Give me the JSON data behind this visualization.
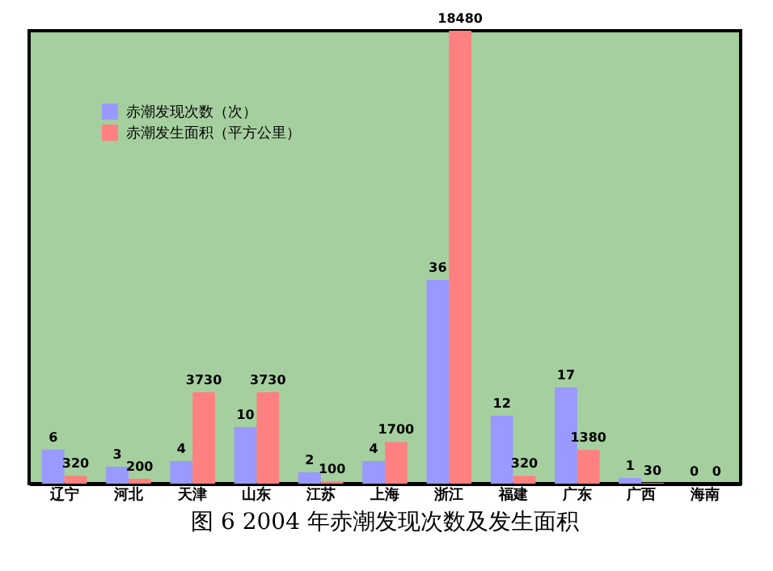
{
  "chart_data": {
    "type": "bar",
    "title": "图 6  2004 年赤潮发现次数及发生面积",
    "categories": [
      "辽宁",
      "河北",
      "天津",
      "山东",
      "江苏",
      "上海",
      "浙江",
      "福建",
      "广东",
      "广西",
      "海南"
    ],
    "series": [
      {
        "name": "赤潮发现次数（次）",
        "color": "#9999ff",
        "values": [
          6,
          3,
          4,
          10,
          2,
          4,
          36,
          12,
          17,
          1,
          0
        ]
      },
      {
        "name": "赤潮发生面积（平方公里）",
        "color": "#ff8080",
        "values": [
          320,
          200,
          3730,
          3730,
          100,
          1700,
          18480,
          320,
          1380,
          30,
          0
        ],
        "axis": "y2"
      }
    ],
    "ylim": [
      0,
      80
    ],
    "y2lim": [
      0,
      18480
    ],
    "data_labels": true,
    "legend": "top left"
  }
}
